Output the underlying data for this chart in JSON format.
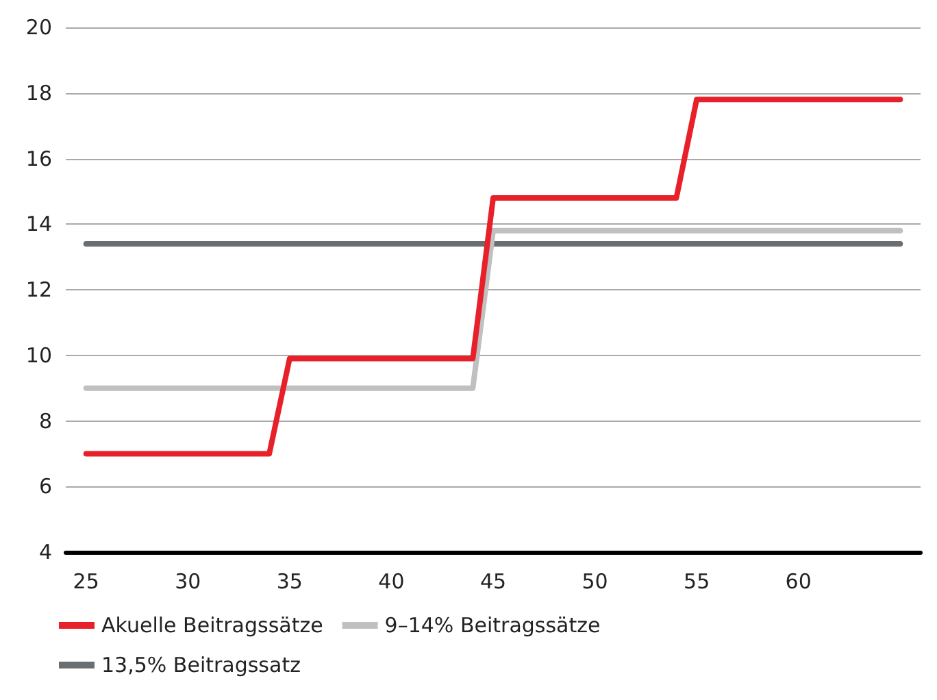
{
  "chart_data": {
    "type": "line",
    "xlim": [
      24,
      66
    ],
    "xticks": [
      25,
      30,
      35,
      40,
      45,
      50,
      55,
      60
    ],
    "ylim": [
      4,
      20
    ],
    "yticks": [
      4,
      6,
      8,
      10,
      12,
      14,
      16,
      18,
      20
    ],
    "grid": "y",
    "legend": "bottom",
    "marker": "none",
    "line_style": "solid",
    "series": [
      {
        "name": "Akuelle Beitragssätze",
        "color": "#e8202a",
        "x": [
          25,
          34,
          35,
          44,
          45,
          54,
          55,
          65
        ],
        "values": [
          7,
          7,
          9.9,
          9.9,
          14.8,
          14.8,
          17.8,
          17.8
        ]
      },
      {
        "name": "9–14% Beitragssätze",
        "color": "#c0c0c0",
        "x": [
          25,
          44,
          45,
          65
        ],
        "values": [
          9,
          9,
          13.8,
          13.8
        ]
      },
      {
        "name": "13,5% Beitragssatz",
        "color": "#6b6e70",
        "x": [
          25,
          65
        ],
        "values": [
          13.4,
          13.4
        ]
      }
    ]
  }
}
